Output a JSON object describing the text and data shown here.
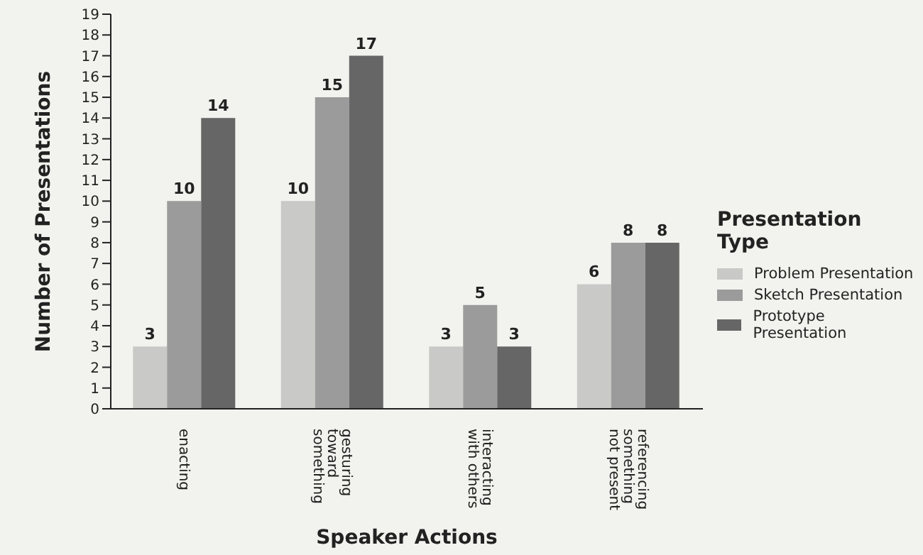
{
  "chart_data": {
    "type": "bar",
    "xlabel": "Speaker Actions",
    "ylabel": "Number of  Presentations",
    "legend_title": "Presentation Type",
    "categories": [
      "enacting",
      "gesturing toward something",
      "interacting with others",
      "referencing something not present"
    ],
    "series": [
      {
        "name": "Problem Presentation",
        "color": "#c9c9c7",
        "values": [
          3,
          10,
          3,
          6
        ]
      },
      {
        "name": "Sketch Presentation",
        "color": "#9b9b9b",
        "values": [
          10,
          15,
          5,
          8
        ]
      },
      {
        "name": "Prototype Presentation",
        "color": "#666666",
        "values": [
          14,
          17,
          3,
          8
        ]
      }
    ],
    "ylim": [
      0,
      19
    ],
    "yticks": [
      0,
      1,
      2,
      3,
      4,
      5,
      6,
      7,
      8,
      9,
      10,
      11,
      12,
      13,
      14,
      15,
      16,
      17,
      18,
      19
    ],
    "data_labels": true,
    "grid": false,
    "legend": "right"
  }
}
